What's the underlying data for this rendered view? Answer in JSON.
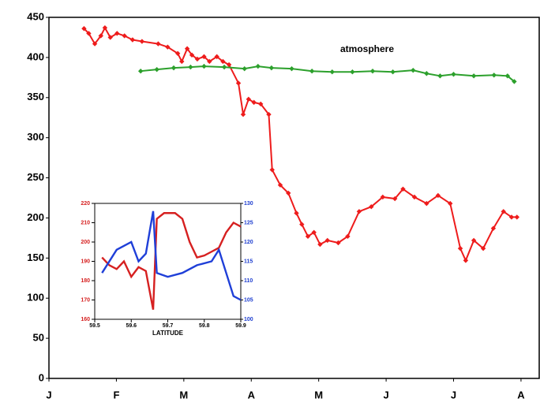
{
  "chart_data": [
    {
      "type": "line",
      "annotations": [
        "atmosphere"
      ],
      "xlim": [
        0,
        7.27
      ],
      "xticks": [
        {
          "value": 0,
          "label": "J"
        },
        {
          "value": 1,
          "label": "F"
        },
        {
          "value": 2,
          "label": "M"
        },
        {
          "value": 3,
          "label": "A"
        },
        {
          "value": 4,
          "label": "M"
        },
        {
          "value": 5,
          "label": "J"
        },
        {
          "value": 6,
          "label": "J"
        },
        {
          "value": 7,
          "label": "A"
        }
      ],
      "ylim": [
        0,
        450
      ],
      "yticks": [
        0,
        50,
        100,
        150,
        200,
        250,
        300,
        350,
        400,
        450
      ],
      "series": [
        {
          "color": "#ee1c1c",
          "x": [
            0.52,
            0.59,
            0.68,
            0.77,
            0.83,
            0.91,
            1.01,
            1.12,
            1.24,
            1.38,
            1.62,
            1.76,
            1.91,
            1.97,
            2.05,
            2.12,
            2.2,
            2.3,
            2.38,
            2.49,
            2.58,
            2.67,
            2.81,
            2.88,
            2.96,
            3.04,
            3.14,
            3.26,
            3.31,
            3.43,
            3.55,
            3.67,
            3.75,
            3.84,
            3.93,
            4.02,
            4.13,
            4.29,
            4.43,
            4.6,
            4.78,
            4.95,
            5.13,
            5.25,
            5.42,
            5.6,
            5.77,
            5.95,
            6.1,
            6.18,
            6.3,
            6.44,
            6.59,
            6.74,
            6.86,
            6.94
          ],
          "values": [
            436,
            430,
            417,
            427,
            437,
            425,
            430,
            427,
            422,
            420,
            417,
            413,
            405,
            395,
            411,
            403,
            398,
            401,
            395,
            401,
            395,
            391,
            368,
            329,
            348,
            344,
            342,
            329,
            260,
            241,
            231,
            206,
            192,
            177,
            182,
            167,
            172,
            169,
            177,
            208,
            214,
            226,
            224,
            236,
            226,
            218,
            228,
            218,
            162,
            147,
            172,
            162,
            187,
            208,
            201,
            201
          ]
        },
        {
          "color": "#2ca02c",
          "x": [
            1.36,
            1.6,
            1.85,
            2.1,
            2.3,
            2.6,
            2.9,
            3.1,
            3.3,
            3.6,
            3.9,
            4.2,
            4.5,
            4.8,
            5.1,
            5.4,
            5.6,
            5.8,
            6.0,
            6.3,
            6.6,
            6.8,
            6.9
          ],
          "values": [
            383,
            385,
            387,
            388,
            389,
            388,
            386,
            389,
            387,
            386,
            383,
            382,
            382,
            383,
            382,
            384,
            380,
            377,
            379,
            377,
            378,
            377,
            370
          ]
        }
      ]
    },
    {
      "type": "line",
      "xlabel": "LATITUDE",
      "xlim": [
        59.5,
        59.9
      ],
      "xticks": [
        59.5,
        59.6,
        59.7,
        59.8,
        59.9
      ],
      "ylim": [
        160,
        220
      ],
      "yticks": [
        160,
        170,
        180,
        190,
        200,
        210,
        220
      ],
      "ytick_color": "#d62020",
      "y2lim": [
        100,
        130
      ],
      "y2ticks": [
        100,
        105,
        110,
        115,
        120,
        125,
        130
      ],
      "y2tick_color": "#2040d0",
      "series": [
        {
          "color": "#d62020",
          "x": [
            59.52,
            59.54,
            59.56,
            59.58,
            59.6,
            59.62,
            59.64,
            59.66,
            59.67,
            59.69,
            59.72,
            59.74,
            59.76,
            59.78,
            59.8,
            59.82,
            59.84,
            59.86,
            59.88,
            59.9
          ],
          "values": [
            192,
            188,
            186,
            190,
            182,
            187,
            185,
            165,
            212,
            215,
            215,
            212,
            200,
            192,
            193,
            195,
            197,
            205,
            210,
            208
          ]
        },
        {
          "color": "#1f3fd8",
          "axis": "y2",
          "x": [
            59.52,
            59.56,
            59.6,
            59.62,
            59.64,
            59.66,
            59.67,
            59.7,
            59.74,
            59.78,
            59.82,
            59.84,
            59.86,
            59.88,
            59.9
          ],
          "values": [
            112,
            118,
            120,
            115,
            117,
            128,
            112,
            111,
            112,
            114,
            115,
            118,
            112,
            106,
            105
          ]
        }
      ]
    }
  ]
}
